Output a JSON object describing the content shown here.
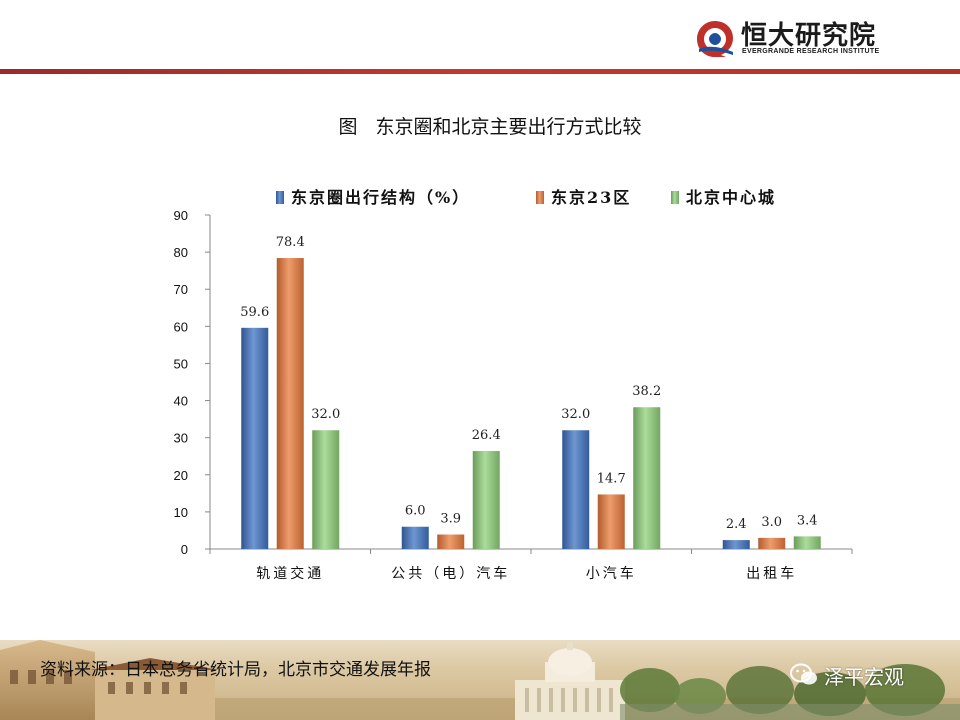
{
  "brand": {
    "name_cn": "恒大研究院",
    "name_en": "EVERGRANDE RESEARCH INSTITUTE",
    "accent": "#c0302a"
  },
  "figure_title": "图   东京圈和北京主要出行方式比较",
  "source": "资料来源：日本总务省统计局，北京市交通发展年报",
  "watermark": "泽平宏观",
  "chart_data": {
    "type": "bar",
    "categories": [
      "轨道交通",
      "公共（电）汽车",
      "小汽车",
      "出租车"
    ],
    "series": [
      {
        "name": "东京圈出行结构（%）",
        "values": [
          59.6,
          6.0,
          32.0,
          2.4
        ],
        "color": "#3f73c2"
      },
      {
        "name": "东京23区",
        "values": [
          78.4,
          3.9,
          14.7,
          3.0
        ],
        "color": "#ea7b3c"
      },
      {
        "name": "北京中心城",
        "values": [
          32.0,
          26.4,
          38.2,
          3.4
        ],
        "color": "#8fd07a"
      }
    ],
    "ylim": [
      0,
      90
    ],
    "yticks": [
      0,
      10,
      20,
      30,
      40,
      50,
      60,
      70,
      80,
      90
    ],
    "grid": false,
    "legend": "top",
    "xlabel": "",
    "ylabel": ""
  }
}
